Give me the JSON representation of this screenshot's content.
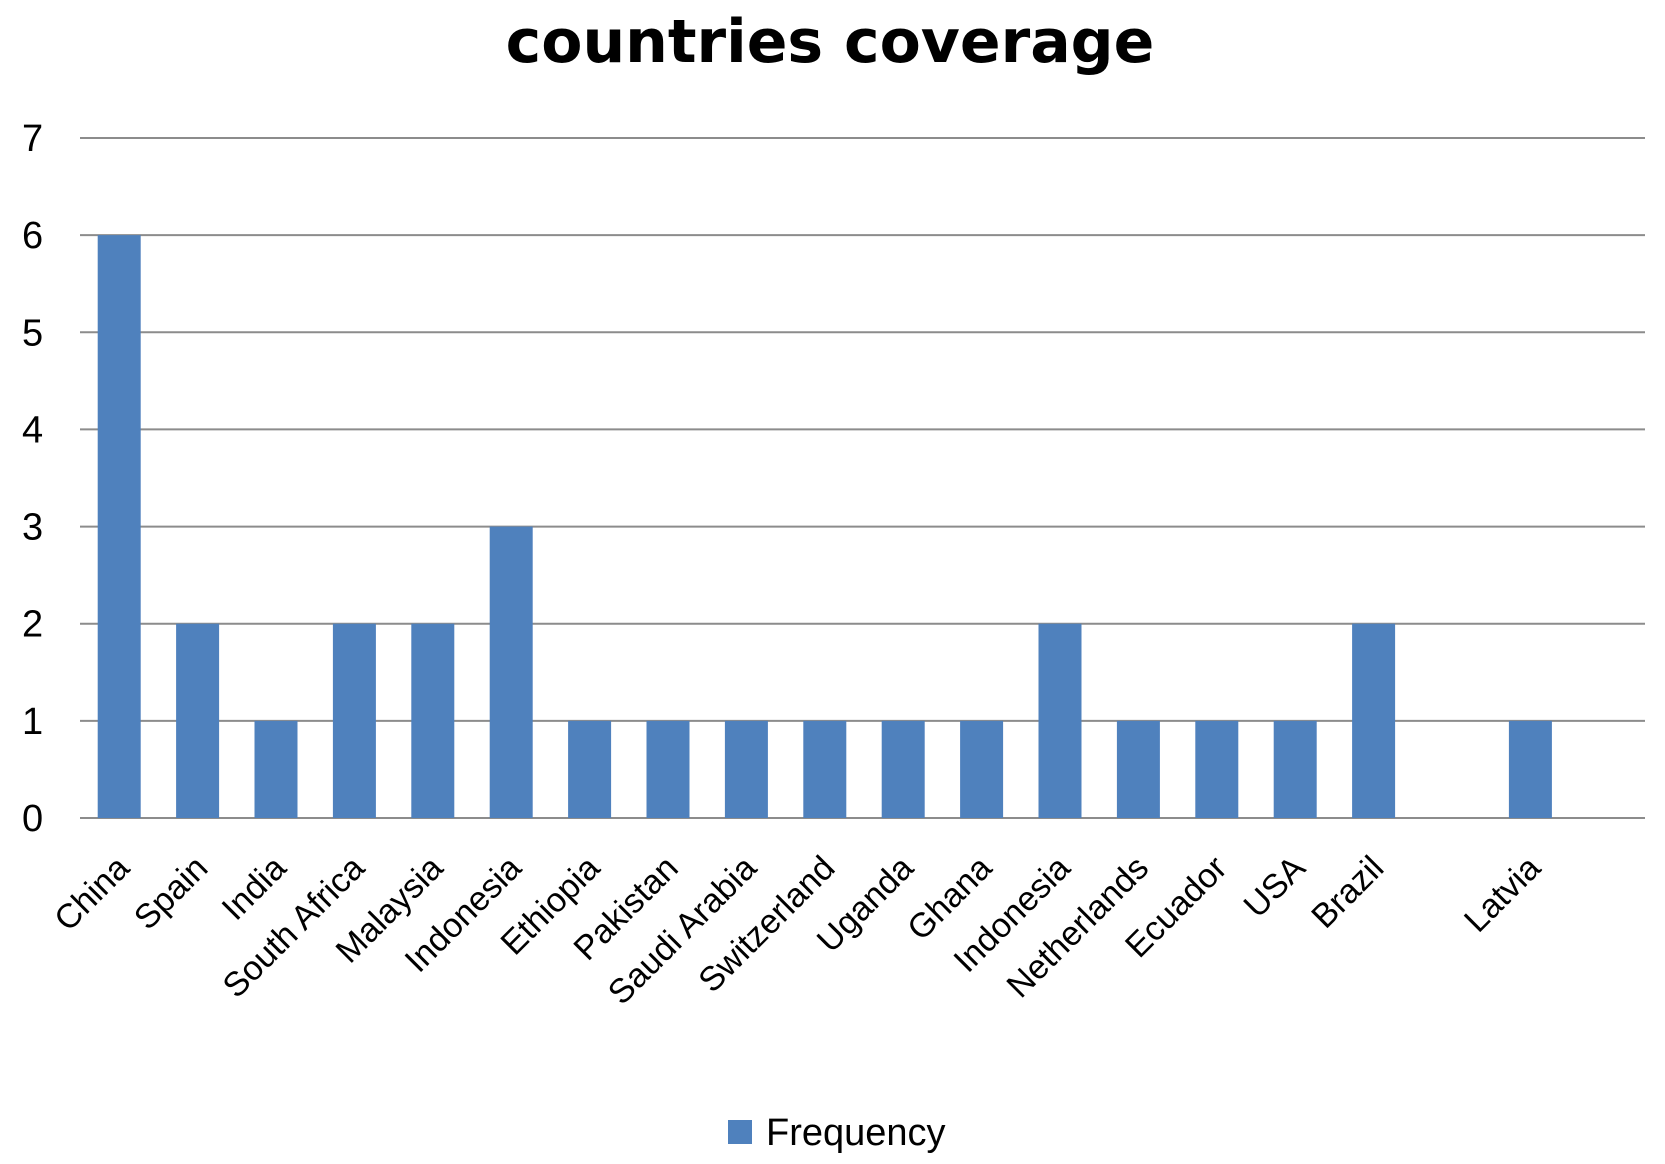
{
  "chart_data": {
    "type": "bar",
    "title": "countries  coverage",
    "categories": [
      "China",
      "Spain",
      "India",
      "South Africa",
      "Malaysia",
      "Indonesia",
      "Ethiopia",
      "Pakistan",
      "Saudi Arabia",
      "Switzerland",
      "Uganda",
      "Ghana",
      "Indonesia",
      "Netherlands",
      "Ecuador",
      "USA",
      "Brazil",
      "",
      "Latvia"
    ],
    "series": [
      {
        "name": "Frequency",
        "values": [
          6,
          2,
          1,
          2,
          2,
          3,
          1,
          1,
          1,
          1,
          1,
          1,
          2,
          1,
          1,
          1,
          2,
          null,
          1
        ]
      }
    ],
    "ylim": [
      0,
      7
    ],
    "yticks": [
      0,
      1,
      2,
      3,
      4,
      5,
      6,
      7
    ],
    "grid": true,
    "legend_position": "bottom",
    "colors": {
      "bar": "#4F81BD",
      "grid": "#8C8C8C"
    }
  }
}
